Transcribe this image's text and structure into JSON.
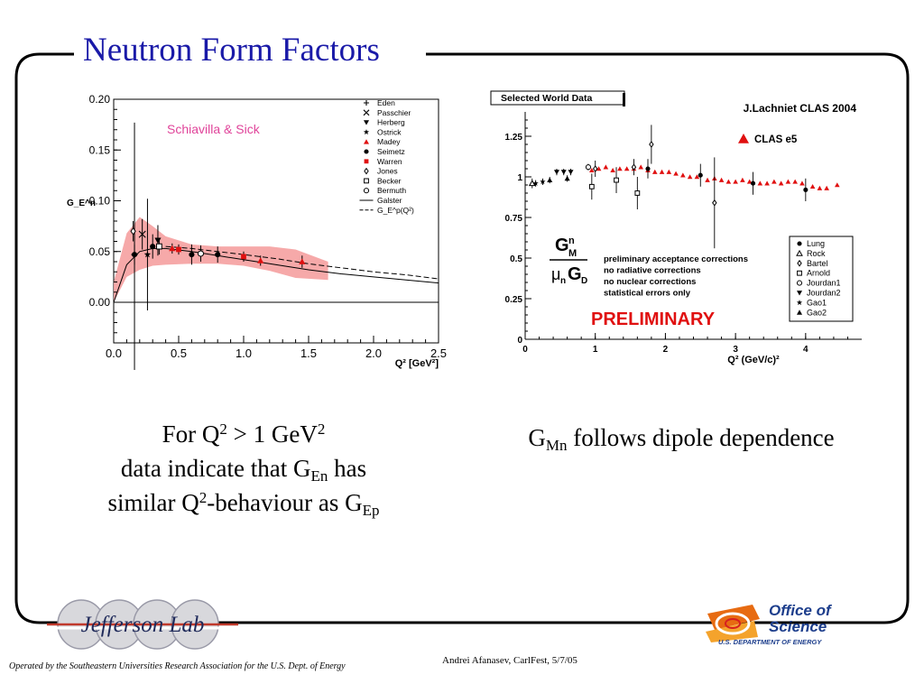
{
  "slide": {
    "title": "Neutron Form Factors",
    "left_caption": {
      "line1_pre": "For Q",
      "line1_sup1": "2",
      "line1_mid": " > 1 GeV",
      "line1_sup2": "2",
      "line2_pre": "data indicate that G",
      "line2_sub": "En",
      "line2_post": " has",
      "line3_pre": "similar Q",
      "line3_sup": "2",
      "line3_mid": "-behaviour as G",
      "line3_sub": "Ep"
    },
    "right_caption": {
      "pre": "G",
      "sub": "Mn",
      "post": " follows dipole dependence"
    },
    "footer_left": "Operated by the Southeastern Universities Research Association for the U.S. Dept. of Energy",
    "footer_mid": "Andrei Afanasev,   CarlFest, 5/7/05",
    "logo_jlab": "Jefferson Lab",
    "logo_doe": {
      "line1": "Office of",
      "line2": "Science",
      "line3": "U.S. DEPARTMENT OF ENERGY"
    }
  },
  "chart_data": [
    {
      "type": "scatter",
      "ylabel": "G_E^n",
      "xlabel": "Q² [GeV²]",
      "xlim": [
        0,
        2.5
      ],
      "ylim": [
        -0.04,
        0.2
      ],
      "xticks": [
        "0.0",
        "0.5",
        "1.0",
        "1.5",
        "2.0",
        "2.5"
      ],
      "yticks": [
        "0.00",
        "0.05",
        "0.10",
        "0.15",
        "0.20"
      ],
      "annotation": "Schiavilla & Sick",
      "colors": {
        "band": "#f5a0a0",
        "madey": "#e01010",
        "annotation": "#e0449a"
      },
      "legend": [
        {
          "label": "Eden",
          "marker": "plus"
        },
        {
          "label": "Passchier",
          "marker": "cross"
        },
        {
          "label": "Herberg",
          "marker": "tri-down"
        },
        {
          "label": "Ostrick",
          "marker": "star"
        },
        {
          "label": "Madey",
          "marker": "tri-up-red"
        },
        {
          "label": "Seimetz",
          "marker": "circle-filled"
        },
        {
          "label": "Warren",
          "marker": "square-red"
        },
        {
          "label": "Jones",
          "marker": "diamond-open"
        },
        {
          "label": "Becker",
          "marker": "square-open"
        },
        {
          "label": "Bermuth",
          "marker": "circle-open"
        },
        {
          "label": "Galster",
          "marker": "line-solid"
        },
        {
          "label": "G_E^p(Q²)",
          "marker": "line-dashed"
        }
      ],
      "band": {
        "x": [
          0,
          0.1,
          0.2,
          0.3,
          0.4,
          0.6,
          0.8,
          1.0,
          1.2,
          1.4,
          1.65
        ],
        "low": [
          0.0,
          0.025,
          0.032,
          0.036,
          0.037,
          0.038,
          0.038,
          0.036,
          0.031,
          0.024,
          0.022
        ],
        "high": [
          0.02,
          0.068,
          0.084,
          0.075,
          0.065,
          0.057,
          0.055,
          0.055,
          0.055,
          0.052,
          0.04
        ]
      },
      "galster": {
        "x": [
          0,
          0.1,
          0.2,
          0.3,
          0.4,
          0.6,
          0.8,
          1.0,
          1.25,
          1.5,
          1.75,
          2.0,
          2.25,
          2.5
        ],
        "y": [
          0,
          0.037,
          0.05,
          0.053,
          0.053,
          0.05,
          0.046,
          0.042,
          0.037,
          0.032,
          0.028,
          0.025,
          0.022,
          0.019
        ]
      },
      "gep": {
        "x": [
          0.4,
          0.6,
          0.8,
          1.0,
          1.25,
          1.5,
          1.75,
          2.0,
          2.25,
          2.5
        ],
        "y": [
          0.055,
          0.053,
          0.05,
          0.047,
          0.043,
          0.038,
          0.034,
          0.03,
          0.027,
          0.023
        ]
      },
      "points": [
        {
          "name": "Eden",
          "marker": "plus",
          "x": 0.16,
          "y": 0.047,
          "err": 0.13
        },
        {
          "name": "Passchier",
          "marker": "cross",
          "x": 0.22,
          "y": 0.067,
          "err": 0.015
        },
        {
          "name": "Herberg",
          "marker": "tri-down",
          "x": 0.34,
          "y": 0.061,
          "err": 0.015
        },
        {
          "name": "Ostrick",
          "marker": "star",
          "x": 0.26,
          "y": 0.047,
          "err": 0.055
        },
        {
          "name": "Madey",
          "marker": "tri-up-red",
          "x": 0.45,
          "y": 0.053,
          "err": 0.005
        },
        {
          "name": "Madey",
          "marker": "tri-up-red",
          "x": 1.13,
          "y": 0.041,
          "err": 0.005
        },
        {
          "name": "Madey",
          "marker": "tri-up-red",
          "x": 1.45,
          "y": 0.04,
          "err": 0.006
        },
        {
          "name": "Seimetz",
          "marker": "circle-filled",
          "x": 0.16,
          "y": 0.047,
          "err": 0.01
        },
        {
          "name": "Seimetz",
          "marker": "circle-filled",
          "x": 0.3,
          "y": 0.055,
          "err": 0.012
        },
        {
          "name": "Seimetz",
          "marker": "circle-filled",
          "x": 0.6,
          "y": 0.047,
          "err": 0.01
        },
        {
          "name": "Seimetz",
          "marker": "circle-filled",
          "x": 0.8,
          "y": 0.047,
          "err": 0.008
        },
        {
          "name": "Warren",
          "marker": "square-red",
          "x": 0.5,
          "y": 0.052,
          "err": 0.005
        },
        {
          "name": "Warren",
          "marker": "square-red",
          "x": 1.0,
          "y": 0.045,
          "err": 0.005
        },
        {
          "name": "Jones",
          "marker": "diamond-open",
          "x": 0.15,
          "y": 0.07,
          "err": 0.01
        },
        {
          "name": "Becker",
          "marker": "square-open",
          "x": 0.35,
          "y": 0.055,
          "err": 0.008
        },
        {
          "name": "Bermuth",
          "marker": "circle-open",
          "x": 0.67,
          "y": 0.048,
          "err": 0.008
        }
      ]
    },
    {
      "type": "scatter",
      "title": "Selected World Data",
      "subtitle": "J.Lachniet CLAS 2004",
      "xlabel": "Q² (GeV/c)²",
      "ylabel": "G_M^n / (μ_n G_D)",
      "xlim": [
        0,
        4.8
      ],
      "ylim": [
        0,
        1.4
      ],
      "xticks": [
        "0",
        "1",
        "2",
        "3",
        "4"
      ],
      "yticks": [
        "0",
        "0.25",
        "0.5",
        "0.75",
        "1",
        "1.25"
      ],
      "legend_top": "CLAS e5",
      "notes": [
        "preliminary acceptance corrections",
        "no radiative corrections",
        "no nuclear corrections",
        "statistical errors only"
      ],
      "stamp": "PRELIMINARY",
      "colors": {
        "clas": "#e01010",
        "stamp": "#e01010"
      },
      "legend": [
        {
          "label": "Lung",
          "marker": "circle-filled"
        },
        {
          "label": "Rock",
          "marker": "tri-up-open"
        },
        {
          "label": "Bartel",
          "marker": "diamond-open"
        },
        {
          "label": "Arnold",
          "marker": "square-open"
        },
        {
          "label": "Jourdan1",
          "marker": "circle-open"
        },
        {
          "label": "Jourdan2",
          "marker": "tri-down"
        },
        {
          "label": "Gao1",
          "marker": "star"
        },
        {
          "label": "Gao2",
          "marker": "tri-up"
        }
      ],
      "clas": {
        "x": [
          0.95,
          1.05,
          1.15,
          1.25,
          1.35,
          1.45,
          1.55,
          1.65,
          1.75,
          1.85,
          1.95,
          2.05,
          2.15,
          2.25,
          2.35,
          2.45,
          2.6,
          2.7,
          2.8,
          2.9,
          3.0,
          3.1,
          3.2,
          3.35,
          3.45,
          3.55,
          3.65,
          3.75,
          3.85,
          3.95,
          4.1,
          4.2,
          4.3,
          4.45
        ],
        "y": [
          1.04,
          1.05,
          1.06,
          1.04,
          1.05,
          1.05,
          1.05,
          1.06,
          1.04,
          1.03,
          1.03,
          1.03,
          1.02,
          1.01,
          1.0,
          1.0,
          0.98,
          0.99,
          0.98,
          0.97,
          0.97,
          0.98,
          0.97,
          0.96,
          0.96,
          0.97,
          0.96,
          0.97,
          0.97,
          0.96,
          0.94,
          0.93,
          0.93,
          0.95
        ]
      },
      "points": [
        {
          "name": "Lung",
          "marker": "circle-filled",
          "x": 1.75,
          "y": 1.05,
          "err": 0.06
        },
        {
          "name": "Lung",
          "marker": "circle-filled",
          "x": 2.5,
          "y": 1.01,
          "err": 0.07
        },
        {
          "name": "Lung",
          "marker": "circle-filled",
          "x": 3.25,
          "y": 0.96,
          "err": 0.07
        },
        {
          "name": "Lung",
          "marker": "circle-filled",
          "x": 4.0,
          "y": 0.92,
          "err": 0.07
        },
        {
          "name": "Rock",
          "marker": "tri-up-open",
          "x": 0.1,
          "y": 0.96,
          "err": 0.03
        },
        {
          "name": "Bartel",
          "marker": "diamond-open",
          "x": 1.0,
          "y": 1.05,
          "err": 0.05
        },
        {
          "name": "Bartel",
          "marker": "diamond-open",
          "x": 1.55,
          "y": 1.06,
          "err": 0.05
        },
        {
          "name": "Bartel",
          "marker": "diamond-open",
          "x": 1.8,
          "y": 1.2,
          "err": 0.12
        },
        {
          "name": "Bartel",
          "marker": "diamond-open",
          "x": 2.7,
          "y": 0.84,
          "err": 0.28
        },
        {
          "name": "Arnold",
          "marker": "square-open",
          "x": 0.95,
          "y": 0.94,
          "err": 0.08
        },
        {
          "name": "Arnold",
          "marker": "square-open",
          "x": 1.3,
          "y": 0.98,
          "err": 0.08
        },
        {
          "name": "Arnold",
          "marker": "square-open",
          "x": 1.6,
          "y": 0.9,
          "err": 0.1
        },
        {
          "name": "Jourdan1",
          "marker": "circle-open",
          "x": 0.9,
          "y": 1.06,
          "err": 0.02
        },
        {
          "name": "Jourdan2",
          "marker": "tri-down",
          "x": 0.45,
          "y": 1.03,
          "err": 0.02
        },
        {
          "name": "Jourdan2",
          "marker": "tri-down",
          "x": 0.55,
          "y": 1.03,
          "err": 0.02
        },
        {
          "name": "Jourdan2",
          "marker": "tri-down",
          "x": 0.65,
          "y": 1.03,
          "err": 0.02
        },
        {
          "name": "Gao1",
          "marker": "star",
          "x": 0.15,
          "y": 0.96,
          "err": 0.02
        },
        {
          "name": "Gao1",
          "marker": "star",
          "x": 0.25,
          "y": 0.97,
          "err": 0.02
        },
        {
          "name": "Gao2",
          "marker": "tri-up",
          "x": 0.35,
          "y": 0.98,
          "err": 0.02
        },
        {
          "name": "Gao2",
          "marker": "tri-up",
          "x": 0.6,
          "y": 0.99,
          "err": 0.02
        }
      ]
    }
  ]
}
